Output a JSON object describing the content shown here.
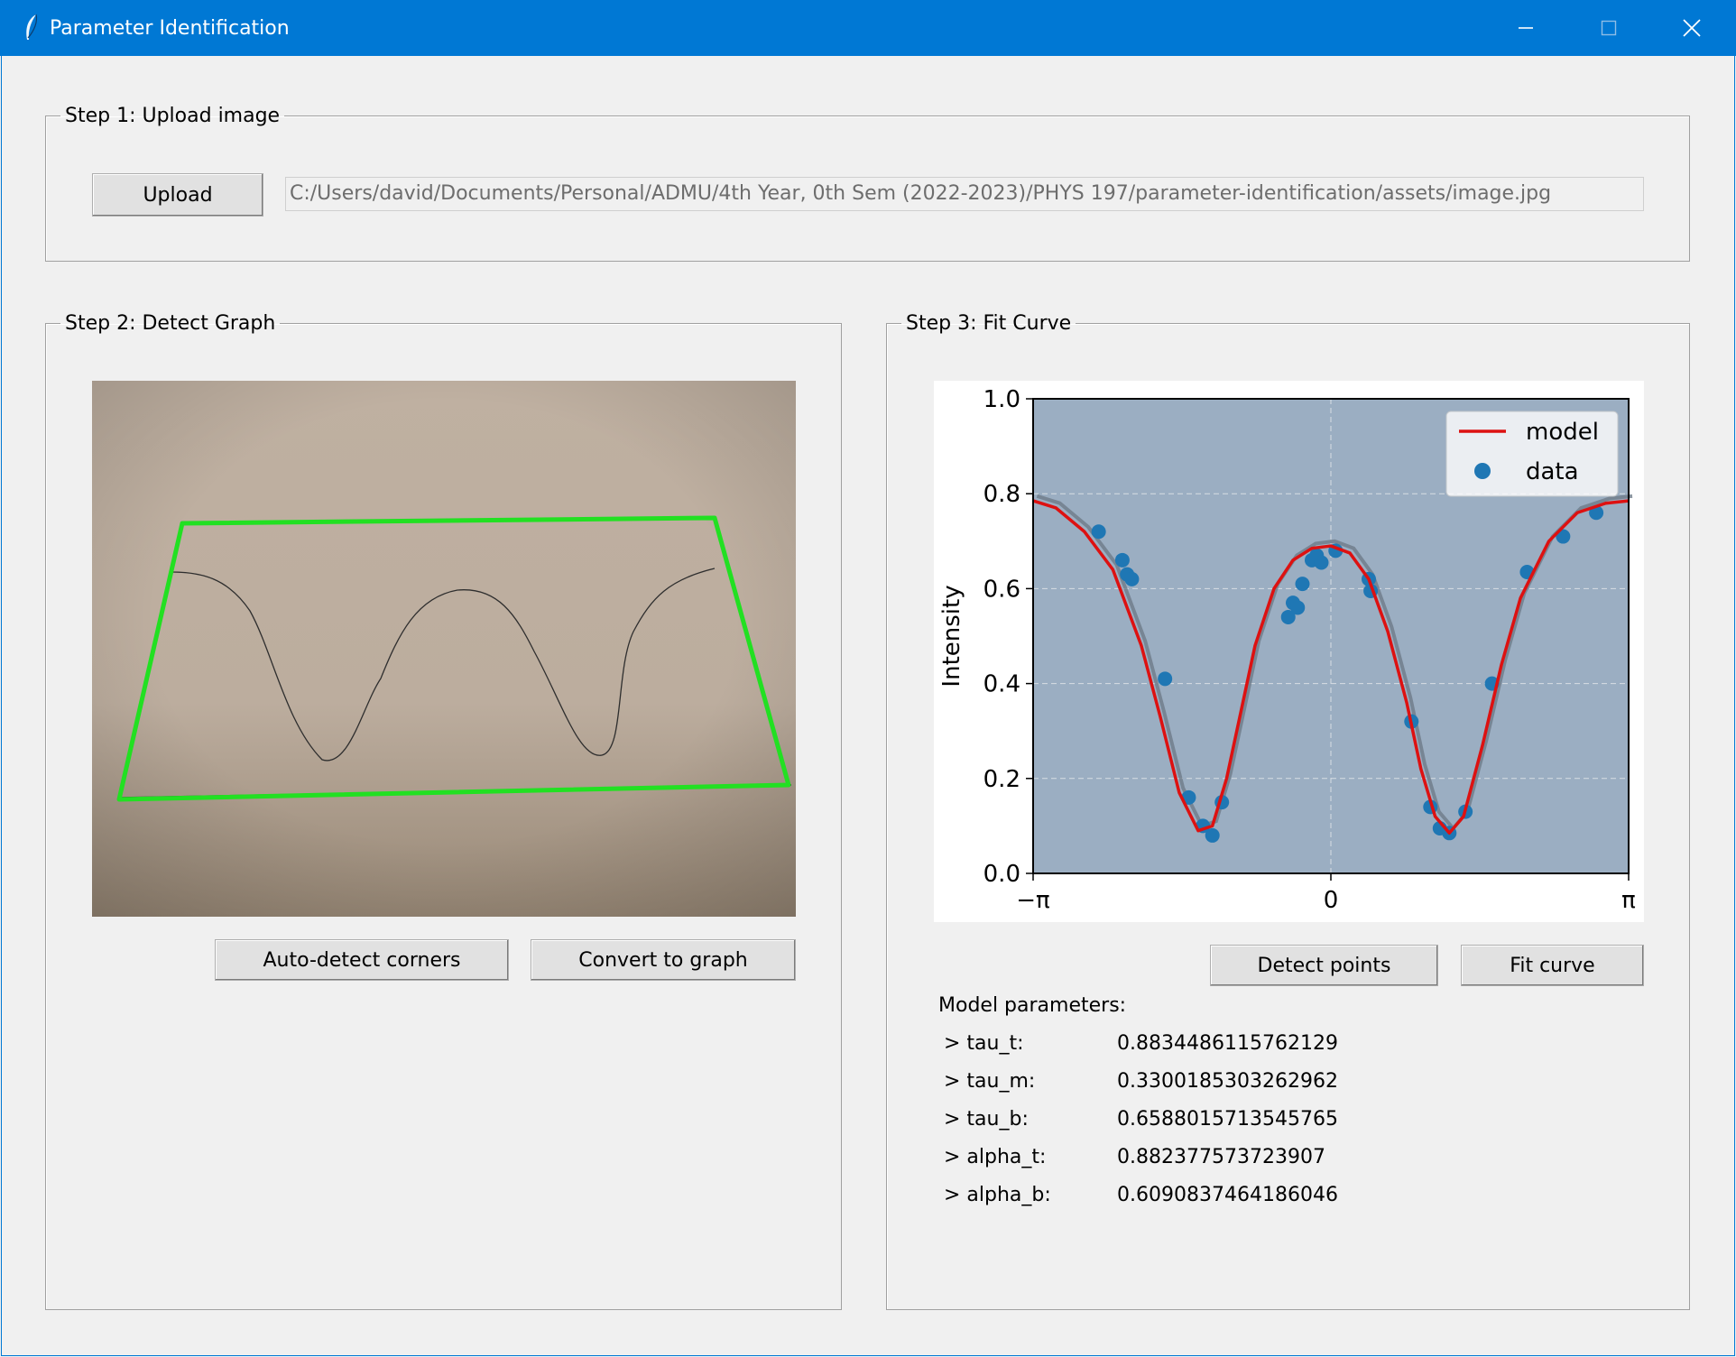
{
  "window": {
    "title": "Parameter Identification"
  },
  "step1": {
    "legend": "Step 1: Upload image",
    "upload_label": "Upload",
    "path_value": "C:/Users/david/Documents/Personal/ADMU/4th Year, 0th Sem (2022-2023)/PHYS 197/parameter-identification/assets/image.jpg"
  },
  "step2": {
    "legend": "Step 2: Detect Graph",
    "auto_detect_label": "Auto-detect corners",
    "convert_label": "Convert to graph"
  },
  "step3": {
    "legend": "Step 3: Fit Curve",
    "detect_points_label": "Detect points",
    "fit_curve_label": "Fit curve",
    "params_heading": "Model parameters:",
    "params": [
      {
        "name": "> tau_t:",
        "value": "0.8834486115762129"
      },
      {
        "name": "> tau_m:",
        "value": "0.3300185303262962"
      },
      {
        "name": "> tau_b:",
        "value": "0.6588015713545765"
      },
      {
        "name": "> alpha_t:",
        "value": "0.882377573723907"
      },
      {
        "name": "> alpha_b:",
        "value": "0.6090837464186046"
      }
    ]
  },
  "colors": {
    "titlebar": "#0078d4",
    "corner_box": "#22e022",
    "model_line": "#dd1111",
    "data_points": "#1f77b4",
    "plot_background": "#93a8bd"
  },
  "chart_data": {
    "type": "scatter",
    "xlabel": "",
    "ylabel": "Intensity",
    "xlim": [
      -3.1416,
      3.1416
    ],
    "ylim": [
      0,
      1
    ],
    "xticklabels": [
      "−π",
      "0",
      "π"
    ],
    "xtick_values": [
      -3.1416,
      0,
      3.1416
    ],
    "yticklabels": [
      "0.0",
      "0.2",
      "0.4",
      "0.6",
      "0.8",
      "1.0"
    ],
    "ytick_values": [
      0,
      0.2,
      0.4,
      0.6,
      0.8,
      1.0
    ],
    "grid": true,
    "legend_position": "top-right",
    "series": [
      {
        "name": "model",
        "kind": "line",
        "x": [
          -3.14,
          -2.9,
          -2.6,
          -2.3,
          -2.0,
          -1.8,
          -1.6,
          -1.4,
          -1.25,
          -1.1,
          -0.95,
          -0.8,
          -0.6,
          -0.4,
          -0.2,
          0.0,
          0.2,
          0.4,
          0.6,
          0.8,
          0.95,
          1.1,
          1.25,
          1.4,
          1.6,
          1.8,
          2.0,
          2.3,
          2.6,
          2.9,
          3.14
        ],
        "y": [
          0.785,
          0.77,
          0.72,
          0.64,
          0.48,
          0.33,
          0.17,
          0.09,
          0.1,
          0.2,
          0.34,
          0.48,
          0.6,
          0.66,
          0.685,
          0.69,
          0.675,
          0.62,
          0.51,
          0.36,
          0.22,
          0.12,
          0.085,
          0.12,
          0.27,
          0.44,
          0.58,
          0.7,
          0.76,
          0.78,
          0.785
        ]
      },
      {
        "name": "data",
        "kind": "scatter",
        "x": [
          -2.45,
          -2.2,
          -2.15,
          -2.1,
          -1.75,
          -1.5,
          -1.35,
          -1.25,
          -1.15,
          -0.45,
          -0.4,
          -0.35,
          -0.3,
          -0.2,
          -0.15,
          -0.1,
          0.05,
          0.4,
          0.42,
          0.85,
          1.05,
          1.15,
          1.25,
          1.42,
          1.7,
          2.07,
          2.45,
          2.8
        ],
        "y": [
          0.72,
          0.66,
          0.63,
          0.62,
          0.41,
          0.16,
          0.1,
          0.08,
          0.15,
          0.54,
          0.57,
          0.56,
          0.61,
          0.66,
          0.67,
          0.655,
          0.68,
          0.62,
          0.595,
          0.32,
          0.14,
          0.095,
          0.085,
          0.13,
          0.4,
          0.635,
          0.71,
          0.76
        ]
      }
    ]
  }
}
